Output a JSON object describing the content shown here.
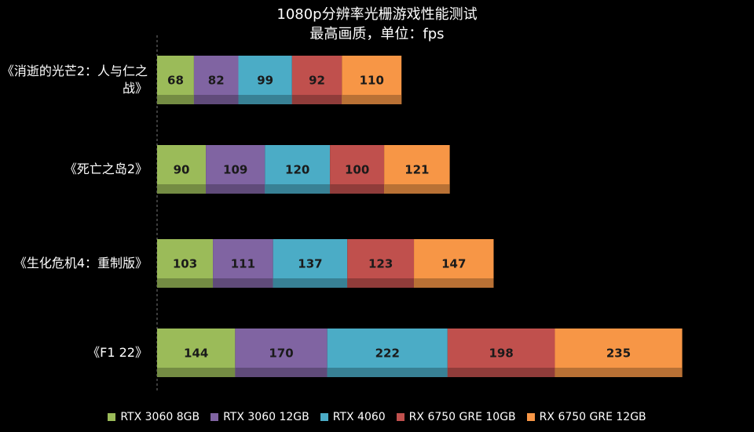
{
  "chart_data": {
    "type": "stacked-bar-horizontal",
    "title": "1080p分辨率光栅游戏性能测试",
    "subtitle": "最高画质，单位：fps",
    "categories": [
      "《消逝的光芒2：人与仁之战》",
      "《死亡之岛2》",
      "《生化危机4：重制版》",
      "《F1 22》"
    ],
    "series": [
      {
        "name": "RTX 3060 8GB",
        "color": "#9bbb59",
        "values": [
          68,
          90,
          103,
          144
        ]
      },
      {
        "name": "RTX 3060 12GB",
        "color": "#8064a2",
        "values": [
          82,
          109,
          111,
          170
        ]
      },
      {
        "name": "RTX 4060",
        "color": "#4bacc6",
        "values": [
          99,
          120,
          137,
          222
        ]
      },
      {
        "name": "RX 6750 GRE 10GB",
        "color": "#c0504d",
        "values": [
          92,
          100,
          123,
          198
        ]
      },
      {
        "name": "RX 6750 GRE 12GB",
        "color": "#f79646",
        "values": [
          110,
          121,
          147,
          235
        ]
      }
    ]
  }
}
